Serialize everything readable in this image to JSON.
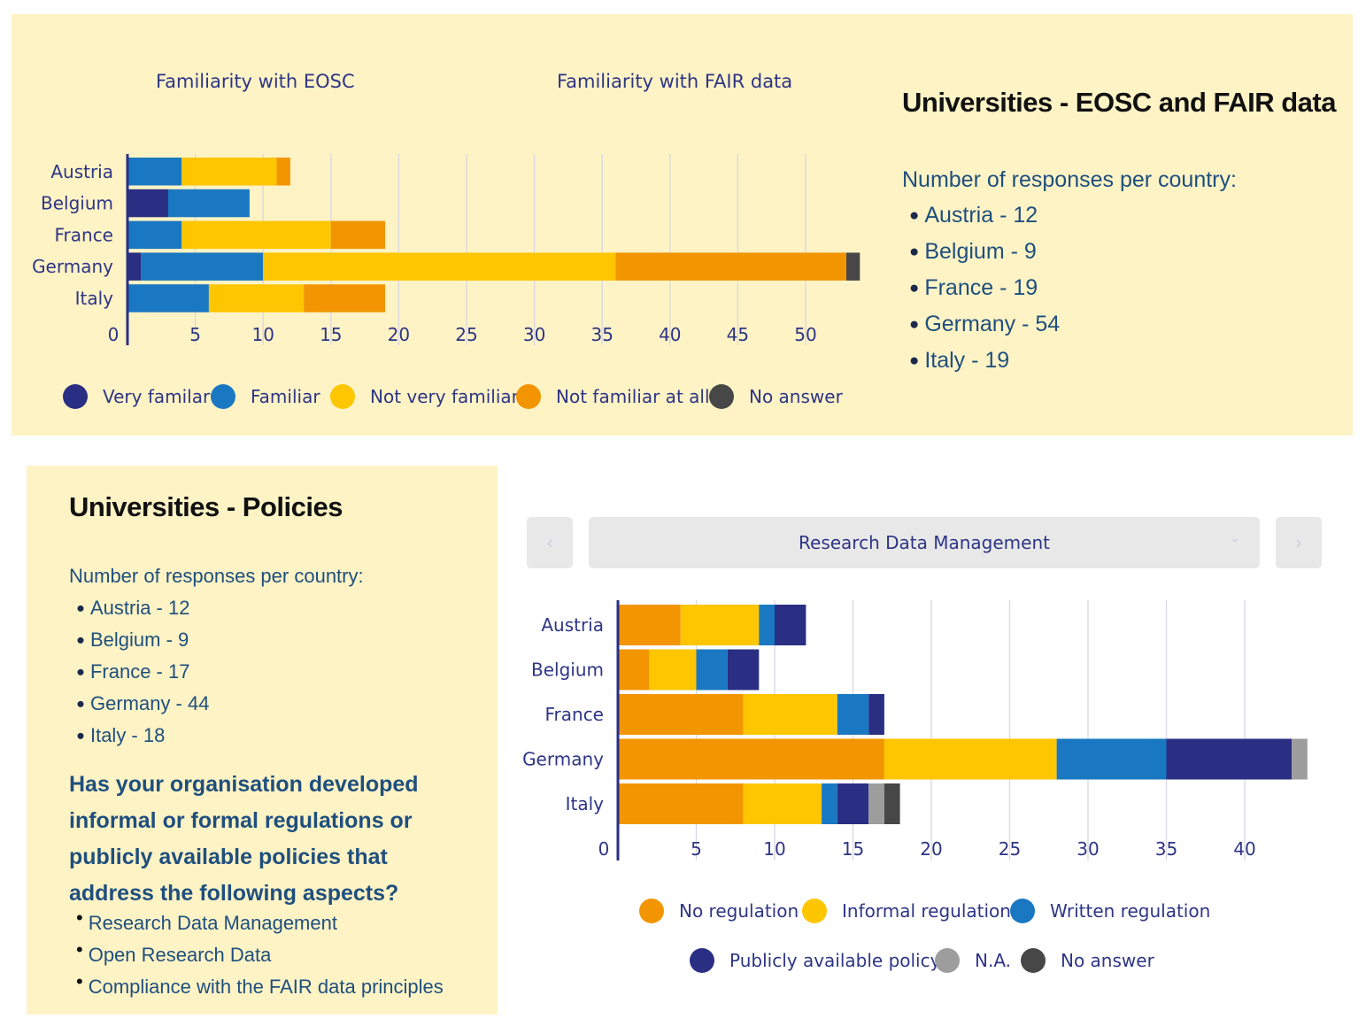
{
  "top": {
    "tabs": [
      "Familiarity with EOSC",
      "Familiarity with FAIR data"
    ],
    "title": "Universities - EOSC and FAIR data",
    "responses_title": "Number of responses per country:",
    "responses": [
      "Austria - 12",
      "Belgium - 9",
      "France - 19",
      "Germany - 54",
      "Italy - 19"
    ]
  },
  "bottom": {
    "title": "Universities - Policies",
    "responses_title": "Number of responses per country:",
    "responses": [
      "Austria - 12",
      "Belgium - 9",
      "France - 17",
      "Germany - 44",
      "Italy - 18"
    ],
    "question": "Has your organisation developed informal or formal regulations or publicly available policies that address the following aspects?",
    "aspects": [
      "Research Data Management",
      "Open Research Data",
      "Compliance with the FAIR data principles"
    ],
    "selector": {
      "value": "Research Data Management",
      "prev_icon": "chevron-left-icon",
      "next_icon": "chevron-right-icon",
      "dropdown_icon": "chevron-down-icon"
    }
  },
  "chart_data": [
    {
      "type": "bar",
      "orientation": "horizontal",
      "stacked": true,
      "title": "Familiarity with EOSC",
      "categories": [
        "Austria",
        "Belgium",
        "France",
        "Germany",
        "Italy"
      ],
      "series": [
        {
          "name": "Very familar",
          "color": "#2a2f84",
          "values": [
            0,
            3,
            0,
            1,
            0
          ]
        },
        {
          "name": "Familiar",
          "color": "#1a78c2",
          "values": [
            4,
            6,
            4,
            9,
            6
          ]
        },
        {
          "name": "Not very familiar",
          "color": "#fec601",
          "values": [
            7,
            0,
            11,
            26,
            7
          ]
        },
        {
          "name": "Not familiar at all",
          "color": "#f29500",
          "values": [
            1,
            0,
            4,
            17,
            6
          ]
        },
        {
          "name": "No answer",
          "color": "#474747",
          "values": [
            0,
            0,
            0,
            1,
            0
          ]
        }
      ],
      "xticks": [
        0,
        5,
        10,
        15,
        20,
        25,
        30,
        35,
        40,
        45,
        50
      ],
      "xlim": [
        0,
        55
      ],
      "grid": true,
      "legend": "bottom"
    },
    {
      "type": "bar",
      "orientation": "horizontal",
      "stacked": true,
      "title": "Research Data Management",
      "categories": [
        "Austria",
        "Belgium",
        "France",
        "Germany",
        "Italy"
      ],
      "series": [
        {
          "name": "No regulation",
          "color": "#f29500",
          "values": [
            4,
            2,
            8,
            17,
            8
          ]
        },
        {
          "name": "Informal regulation",
          "color": "#fec601",
          "values": [
            5,
            3,
            6,
            11,
            5
          ]
        },
        {
          "name": "Written regulation",
          "color": "#1a78c2",
          "values": [
            1,
            2,
            2,
            7,
            1
          ]
        },
        {
          "name": "Publicly available policy",
          "color": "#2a2f84",
          "values": [
            2,
            2,
            1,
            8,
            2
          ]
        },
        {
          "name": "N.A.",
          "color": "#9d9d9d",
          "values": [
            0,
            0,
            0,
            1,
            1
          ]
        },
        {
          "name": "No answer",
          "color": "#474747",
          "values": [
            0,
            0,
            0,
            0,
            1
          ]
        }
      ],
      "xticks": [
        0,
        5,
        10,
        15,
        20,
        25,
        30,
        35,
        40
      ],
      "xlim": [
        0,
        44
      ],
      "grid": true,
      "legend": "bottom"
    }
  ]
}
